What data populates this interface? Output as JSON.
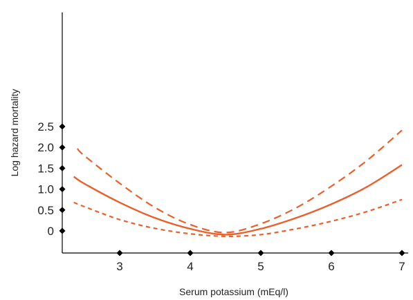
{
  "chart_data": {
    "type": "line",
    "title": "",
    "xlabel": "Serum potassium (mEq/l)",
    "ylabel": "Log hazard mortality",
    "xlim": [
      2.3,
      7.05
    ],
    "ylim": [
      -0.15,
      2.55
    ],
    "x_ticks": [
      {
        "value": 3,
        "label": "3"
      },
      {
        "value": 4,
        "label": "4"
      },
      {
        "value": 5,
        "label": "5"
      },
      {
        "value": 6,
        "label": "6"
      },
      {
        "value": 7,
        "label": "7"
      }
    ],
    "y_ticks": [
      {
        "value": 0,
        "label": "0"
      },
      {
        "value": 0.5,
        "label": "0.5"
      },
      {
        "value": 1.0,
        "label": "1.0"
      },
      {
        "value": 1.5,
        "label": "1.5"
      },
      {
        "value": 2.0,
        "label": "2.0"
      },
      {
        "value": 2.5,
        "label": "2.5"
      }
    ],
    "grid": false,
    "legend": "none",
    "line_color": "#e8602c",
    "series": [
      {
        "style": "solid",
        "x": [
          2.35,
          2.5,
          3.0,
          3.5,
          4.0,
          4.5,
          5.0,
          5.5,
          6.0,
          6.5,
          7.0
        ],
        "y": [
          1.3,
          1.13,
          0.68,
          0.31,
          0.05,
          -0.09,
          0.05,
          0.31,
          0.64,
          1.05,
          1.58
        ]
      },
      {
        "style": "dashed",
        "x": [
          2.4,
          2.5,
          3.0,
          3.5,
          4.0,
          4.5,
          5.0,
          5.5,
          6.0,
          6.5,
          7.0
        ],
        "y": [
          1.97,
          1.8,
          1.14,
          0.56,
          0.15,
          -0.04,
          0.17,
          0.55,
          1.07,
          1.68,
          2.41
        ]
      },
      {
        "style": "dotted",
        "x": [
          2.35,
          2.5,
          3.0,
          3.5,
          4.0,
          4.5,
          5.0,
          5.5,
          6.0,
          6.5,
          7.0
        ],
        "y": [
          0.68,
          0.58,
          0.27,
          0.06,
          -0.07,
          -0.13,
          -0.09,
          0.05,
          0.23,
          0.46,
          0.75
        ]
      }
    ]
  }
}
